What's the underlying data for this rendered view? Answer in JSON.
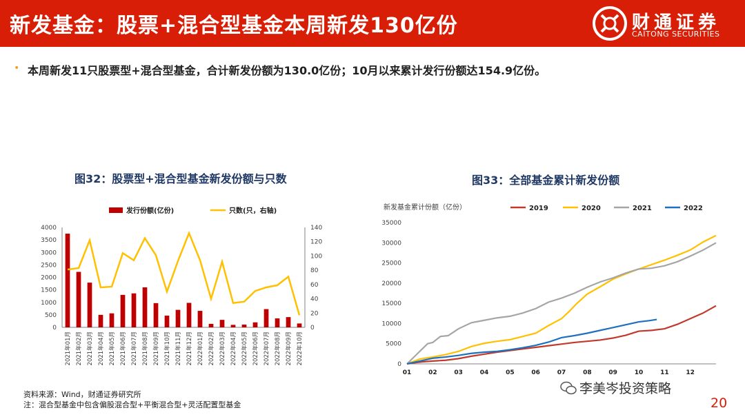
{
  "header": {
    "title": "新发基金：股票+混合型基金本周新发130亿份",
    "logo_cn": "财通证券",
    "logo_en": "CAITONG SECURITIES"
  },
  "bullet": "本周新发11只股票型+混合型基金，合计新发份额为130.0亿份；10月以来累计发行份额达154.9亿份。",
  "fig32": {
    "title": "图32：股票型+混合型基金新发份额与只数"
  },
  "fig33": {
    "title": "图33：全部基金累计新发份额"
  },
  "chart_data": [
    {
      "type": "bar",
      "title": "图32：股票型+混合型基金新发份额与只数",
      "categories": [
        "2021年01月",
        "2021年02月",
        "2021年03月",
        "2021年04月",
        "2021年05月",
        "2021年06月",
        "2021年07月",
        "2021年08月",
        "2021年09月",
        "2021年10月",
        "2021年11月",
        "2021年12月",
        "2022年01月",
        "2022年02月",
        "2022年03月",
        "2022年04月",
        "2022年05月",
        "2022年06月",
        "2022年07月",
        "2022年08月",
        "2022年09月",
        "2022年10月"
      ],
      "series": [
        {
          "name": "发行份额(亿份)",
          "type": "bar",
          "axis": "left",
          "color": "#c00000",
          "values": [
            3750,
            2220,
            1790,
            500,
            560,
            1300,
            1360,
            1600,
            970,
            470,
            700,
            980,
            660,
            140,
            300,
            100,
            110,
            200,
            730,
            360,
            410,
            155
          ]
        },
        {
          "name": "只数(只，右轴)",
          "type": "line",
          "axis": "right",
          "color": "#ffc000",
          "values": [
            81,
            83,
            122,
            56,
            57,
            104,
            94,
            125,
            101,
            50,
            93,
            132,
            94,
            40,
            92,
            34,
            36,
            51,
            56,
            59,
            71,
            17
          ]
        }
      ],
      "ylim_left": [
        0,
        4000
      ],
      "yticks_left": [
        0,
        500,
        1000,
        1500,
        2000,
        2500,
        3000,
        3500,
        4000
      ],
      "ylim_right": [
        0,
        140
      ],
      "yticks_right": [
        0,
        20,
        40,
        60,
        80,
        100,
        120,
        140
      ],
      "legend": "top"
    },
    {
      "type": "line",
      "title": "图33：全部基金累计新发份额",
      "ylabel": "新发基金累计份额（亿份）",
      "ylim": [
        0,
        35000
      ],
      "yticks": [
        0,
        5000,
        10000,
        15000,
        20000,
        25000,
        30000,
        35000
      ],
      "xticks": [
        "01",
        "02",
        "03",
        "04",
        "05",
        "06",
        "07",
        "08",
        "09",
        "10",
        "11",
        "12"
      ],
      "xlim": [
        1,
        13
      ],
      "legend": "top",
      "series": [
        {
          "name": "2019",
          "color": "#c0392b",
          "x": [
            1,
            1.3,
            1.6,
            2,
            2.5,
            3,
            3.5,
            4,
            4.5,
            5,
            5.5,
            6,
            6.5,
            7,
            7.5,
            8,
            8.5,
            9,
            9.5,
            10,
            10.5,
            11,
            11.5,
            12,
            12.5,
            13
          ],
          "y": [
            0,
            300,
            500,
            700,
            900,
            1300,
            1900,
            2400,
            2900,
            3300,
            3700,
            4100,
            4500,
            4900,
            5300,
            5600,
            5900,
            6400,
            7100,
            8100,
            8300,
            8700,
            9800,
            11200,
            12600,
            14400
          ]
        },
        {
          "name": "2020",
          "color": "#ffc000",
          "x": [
            1,
            1.5,
            2,
            2.5,
            3,
            3.5,
            4,
            4.5,
            5,
            5.5,
            6,
            6.5,
            7,
            7.3,
            7.6,
            8,
            8.5,
            9,
            9.5,
            10,
            10.5,
            11,
            11.5,
            12,
            12.5,
            13
          ],
          "y": [
            0,
            1200,
            1700,
            2300,
            3100,
            4300,
            5100,
            5600,
            6000,
            6800,
            7600,
            9500,
            11200,
            13000,
            15000,
            17300,
            19100,
            21000,
            22300,
            23500,
            24600,
            25700,
            26900,
            28200,
            30200,
            31800
          ]
        },
        {
          "name": "2021",
          "color": "#a5a5a5",
          "x": [
            1,
            1.4,
            1.8,
            2,
            2.3,
            2.6,
            3,
            3.5,
            4,
            4.5,
            5,
            5.5,
            6,
            6.5,
            7,
            7.5,
            8,
            8.5,
            9,
            9.5,
            10,
            10.5,
            11,
            11.5,
            12,
            12.5,
            13
          ],
          "y": [
            0,
            2500,
            5000,
            5300,
            6800,
            7000,
            8700,
            10200,
            10800,
            11400,
            11800,
            12600,
            13700,
            15300,
            16300,
            17500,
            19000,
            20300,
            21300,
            22500,
            23500,
            23700,
            24300,
            25300,
            26700,
            28200,
            30000
          ]
        },
        {
          "name": "2022",
          "color": "#1f6fbf",
          "x": [
            1,
            1.5,
            2,
            2.5,
            3,
            3.5,
            4,
            4.5,
            5,
            5.5,
            6,
            6.5,
            7,
            7.5,
            8,
            8.5,
            9,
            9.5,
            10,
            10.4,
            10.7
          ],
          "y": [
            0,
            700,
            1400,
            1700,
            2100,
            2600,
            2900,
            3100,
            3500,
            4000,
            4600,
            5400,
            6500,
            7000,
            7600,
            8300,
            9000,
            9700,
            10400,
            10700,
            11000
          ]
        }
      ]
    }
  ],
  "source": "资料来源：Wind，财通证券研究所",
  "footnote": "注：混合型基金中包含偏股混合型+平衡混合型+灵活配置型基金",
  "watermark": "李美岑投资策略",
  "page_number": "20"
}
